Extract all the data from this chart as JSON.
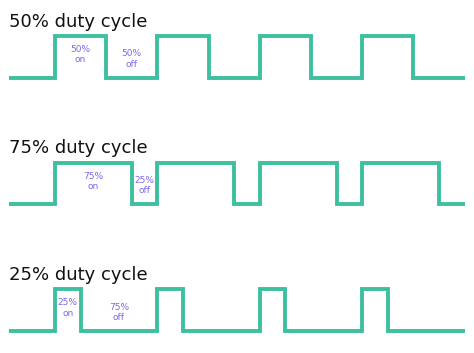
{
  "title_fontsize": 13,
  "label_fontsize": 6.5,
  "line_color": "#3dbfa0",
  "text_color": "#7b68ee",
  "title_color": "#111111",
  "line_width": 2.8,
  "background_color": "#ffffff",
  "lead_in": 0.1,
  "n_cycles": 4,
  "panels": [
    {
      "title": "50% duty cycle",
      "duty": 0.5,
      "on_label": "50%\non",
      "off_label": "50%\noff"
    },
    {
      "title": "75% duty cycle",
      "duty": 0.75,
      "on_label": "75%\non",
      "off_label": "25%\noff"
    },
    {
      "title": "25% duty cycle",
      "duty": 0.25,
      "on_label": "25%\non",
      "off_label": "75%\noff"
    }
  ]
}
